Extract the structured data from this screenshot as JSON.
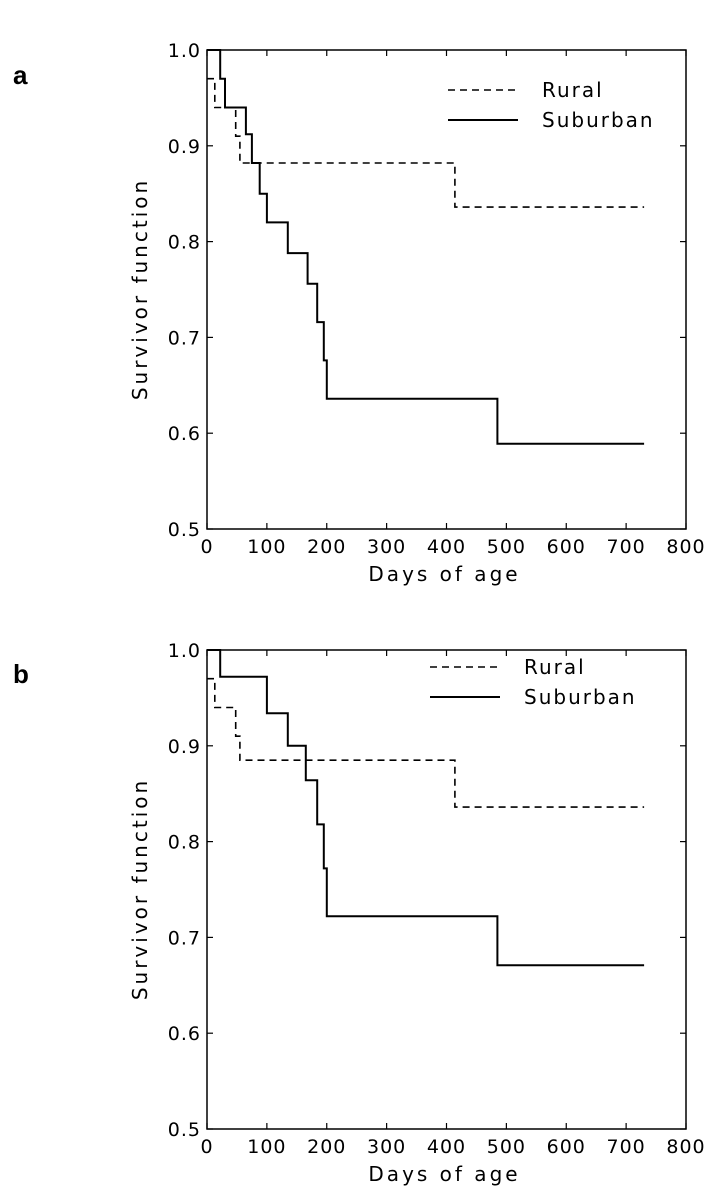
{
  "chart_data": [
    {
      "type": "line",
      "panel": "a",
      "xlabel": "Days of age",
      "ylabel": "Survivor function",
      "xlim": [
        0,
        800
      ],
      "ylim": [
        0.5,
        1.0
      ],
      "xticks": [
        "0",
        "100",
        "200",
        "300",
        "400",
        "500",
        "600",
        "700",
        "800"
      ],
      "yticks": [
        "0.5",
        "0.6",
        "0.7",
        "0.8",
        "0.9",
        "1.0"
      ],
      "legend_position": "top-right",
      "series": [
        {
          "name": "Rural",
          "style": "dashed",
          "color": "#000000",
          "x": [
            0,
            13,
            13,
            48,
            48,
            55,
            55,
            414,
            414,
            730
          ],
          "y": [
            0.97,
            0.97,
            0.94,
            0.94,
            0.91,
            0.91,
            0.882,
            0.882,
            0.836,
            0.836
          ]
        },
        {
          "name": "Suburban",
          "style": "solid",
          "color": "#000000",
          "x": [
            0,
            22,
            22,
            30,
            30,
            65,
            65,
            75,
            75,
            88,
            88,
            100,
            100,
            135,
            135,
            168,
            168,
            184,
            184,
            195,
            195,
            200,
            200,
            485,
            485,
            730
          ],
          "y": [
            1.0,
            1.0,
            0.97,
            0.97,
            0.94,
            0.94,
            0.912,
            0.912,
            0.882,
            0.882,
            0.85,
            0.85,
            0.82,
            0.82,
            0.788,
            0.788,
            0.756,
            0.756,
            0.716,
            0.716,
            0.676,
            0.676,
            0.636,
            0.636,
            0.589,
            0.589
          ]
        }
      ]
    },
    {
      "type": "line",
      "panel": "b",
      "xlabel": "Days of age",
      "ylabel": "Survivor function",
      "xlim": [
        0,
        800
      ],
      "ylim": [
        0.5,
        1.0
      ],
      "xticks": [
        "0",
        "100",
        "200",
        "300",
        "400",
        "500",
        "600",
        "700",
        "800"
      ],
      "yticks": [
        "0.5",
        "0.6",
        "0.7",
        "0.8",
        "0.9",
        "1.0"
      ],
      "legend_position": "top-right",
      "series": [
        {
          "name": "Rural",
          "style": "dashed",
          "color": "#000000",
          "x": [
            0,
            13,
            13,
            48,
            48,
            55,
            55,
            414,
            414,
            730
          ],
          "y": [
            0.97,
            0.97,
            0.94,
            0.94,
            0.91,
            0.91,
            0.885,
            0.885,
            0.836,
            0.836
          ]
        },
        {
          "name": "Suburban",
          "style": "solid",
          "color": "#000000",
          "x": [
            0,
            22,
            22,
            100,
            100,
            135,
            135,
            165,
            165,
            184,
            184,
            195,
            195,
            200,
            200,
            485,
            485,
            730
          ],
          "y": [
            1.0,
            1.0,
            0.972,
            0.972,
            0.934,
            0.934,
            0.9,
            0.9,
            0.864,
            0.864,
            0.818,
            0.818,
            0.772,
            0.772,
            0.722,
            0.722,
            0.671,
            0.671
          ]
        }
      ]
    }
  ]
}
